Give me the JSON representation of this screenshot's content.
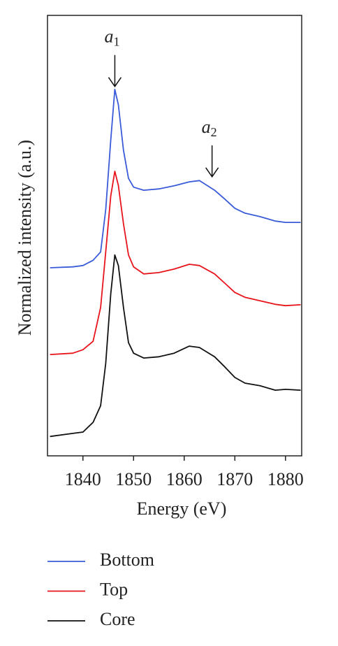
{
  "chart_data": {
    "type": "line",
    "xlabel": "Energy (eV)",
    "ylabel": "Normalized intensity (a.u.)",
    "x": [
      1833.5,
      1838,
      1840,
      1842,
      1843.5,
      1844.5,
      1845.5,
      1846.3,
      1847,
      1848,
      1849,
      1850,
      1852,
      1855,
      1858,
      1861,
      1863,
      1866,
      1868,
      1870,
      1872,
      1875,
      1878,
      1880,
      1883
    ],
    "series": [
      {
        "name": "Bottom",
        "color": "#3a5bd9",
        "values": [
          4.27,
          4.29,
          4.32,
          4.44,
          4.63,
          5.59,
          7.17,
          8.32,
          7.97,
          6.94,
          6.3,
          6.1,
          6.03,
          6.06,
          6.13,
          6.22,
          6.25,
          6.03,
          5.83,
          5.62,
          5.51,
          5.43,
          5.33,
          5.3,
          5.3
        ]
      },
      {
        "name": "Top",
        "color": "#e8141c",
        "values": [
          2.3,
          2.33,
          2.41,
          2.6,
          3.37,
          4.63,
          5.9,
          6.46,
          6.14,
          5.27,
          4.56,
          4.29,
          4.13,
          4.16,
          4.24,
          4.35,
          4.32,
          4.13,
          3.92,
          3.71,
          3.6,
          3.52,
          3.44,
          3.41,
          3.43
        ]
      },
      {
        "name": "Core",
        "color": "#111111",
        "values": [
          0.44,
          0.51,
          0.54,
          0.76,
          1.14,
          2.1,
          3.68,
          4.56,
          4.32,
          3.37,
          2.57,
          2.33,
          2.22,
          2.25,
          2.33,
          2.49,
          2.46,
          2.25,
          2.02,
          1.78,
          1.65,
          1.59,
          1.49,
          1.51,
          1.49
        ]
      }
    ],
    "annotations": [
      {
        "text": "a",
        "sub": "1",
        "x": 1846.3,
        "y": 8.37
      },
      {
        "text": "a",
        "sub": "2",
        "x": 1865.5,
        "y": 6.32
      }
    ],
    "xlim": [
      1833,
      1883.2
    ],
    "xticks": [
      1840,
      1850,
      1860,
      1870,
      1880
    ],
    "ylim": [
      0,
      10
    ]
  }
}
